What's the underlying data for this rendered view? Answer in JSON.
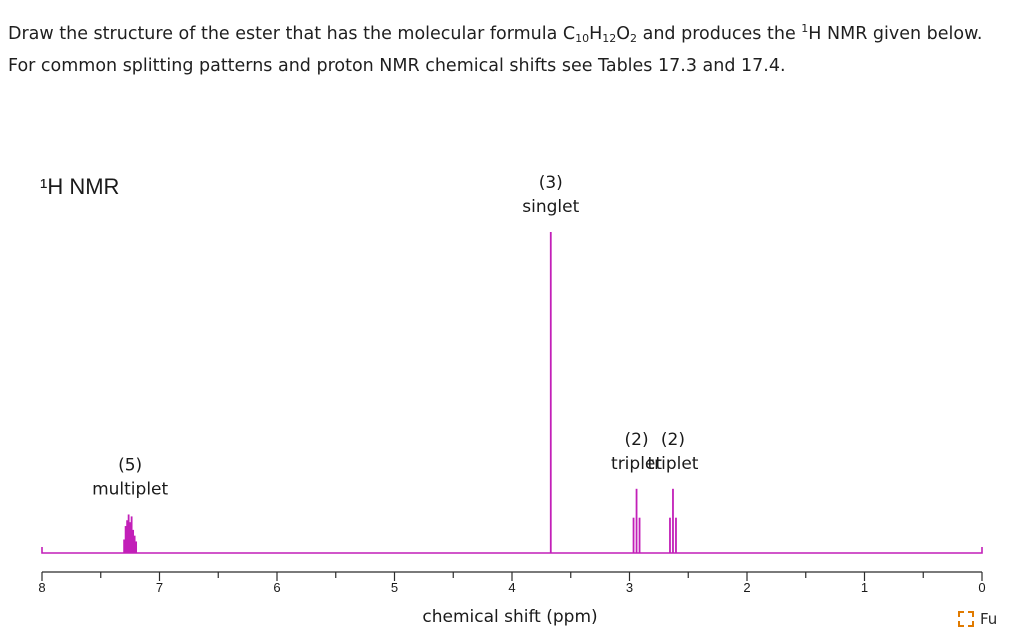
{
  "question": {
    "line1_a": "Draw the structure of the ester that has the molecular formula C",
    "sub_c": "10",
    "mid_h": "H",
    "sub_h": "12",
    "mid_o": "O",
    "sub_o": "2",
    "line1_b": " and produces the ",
    "sup_1": "1",
    "line1_c": "H NMR given below.",
    "line2": "For common splitting patterns and proton NMR chemical shifts see Tables 17.3 and 17.4."
  },
  "chart_data": {
    "type": "line",
    "title": "¹H NMR",
    "xlabel": "chemical shift (ppm)",
    "ylabel": "",
    "xlim": [
      8,
      0
    ],
    "x_reversed": true,
    "ticks": [
      "8",
      "7",
      "6",
      "5",
      "4",
      "3",
      "2",
      "1",
      "0"
    ],
    "line_color": "#c21fb8",
    "axis_color": "#2b2b2b",
    "peaks": [
      {
        "shift": 7.25,
        "integration": "(5)",
        "multiplicity": "multiplet",
        "relative_height": 0.12
      },
      {
        "shift": 3.67,
        "integration": "(3)",
        "multiplicity": "singlet",
        "relative_height": 1.0
      },
      {
        "shift": 2.94,
        "integration": "(2)",
        "multiplicity": "triplet",
        "relative_height": 0.2
      },
      {
        "shift": 2.63,
        "integration": "(2)",
        "multiplicity": "triplet",
        "relative_height": 0.2
      }
    ]
  },
  "fullscreen": {
    "label": "Fu",
    "icon": "expand-icon"
  }
}
